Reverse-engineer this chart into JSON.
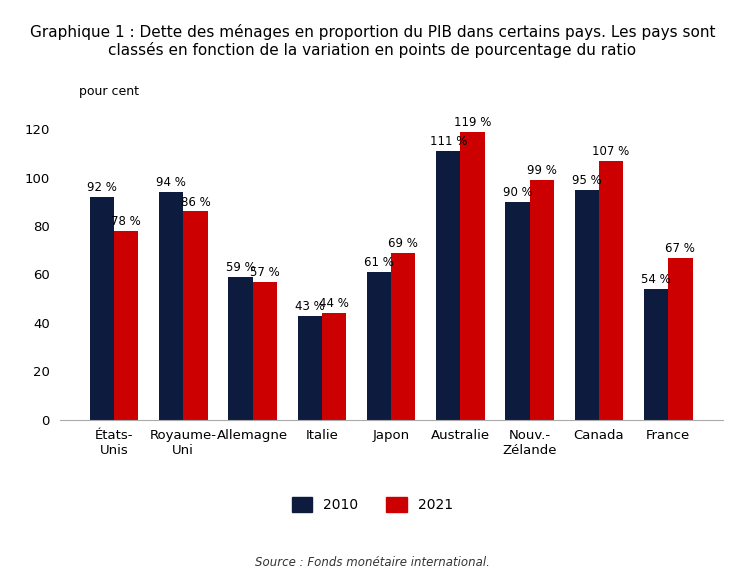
{
  "title": "Graphique 1 : Dette des ménages en proportion du PIB dans certains pays. Les pays sont\nclassés en fonction de la variation en points de pourcentage du ratio",
  "pour_cent_label": "pour cent",
  "source": "Source : Fonds monétaire international.",
  "categories": [
    "États-\nUnis",
    "Royaume-\nUni",
    "Allemagne",
    "Italie",
    "Japon",
    "Australie",
    "Nouv.-\nZélande",
    "Canada",
    "France"
  ],
  "values_2010": [
    92,
    94,
    59,
    43,
    61,
    111,
    90,
    95,
    54
  ],
  "values_2021": [
    78,
    86,
    57,
    44,
    69,
    119,
    99,
    107,
    67
  ],
  "color_2010": "#0d1b3e",
  "color_2021": "#cc0000",
  "ylim": [
    0,
    130
  ],
  "yticks": [
    0,
    20,
    40,
    60,
    80,
    100,
    120
  ],
  "bar_width": 0.35,
  "legend_2010": "2010",
  "legend_2021": "2021",
  "title_fontsize": 11.0,
  "tick_fontsize": 9.5,
  "value_fontsize": 8.5,
  "source_fontsize": 8.5,
  "legend_fontsize": 10,
  "pour_cent_fontsize": 9,
  "background_color": "#ffffff"
}
